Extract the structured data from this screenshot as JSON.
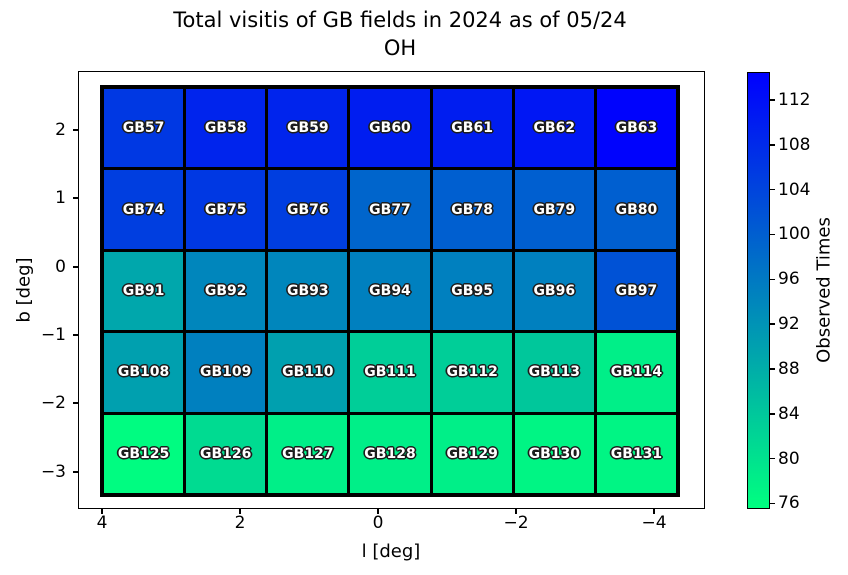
{
  "figure": {
    "title_line1": "Total visitis of GB fields in 2024 as of 05/24",
    "title_line2": "OH"
  },
  "chart_data": {
    "type": "heatmap",
    "title": "Total visitis of GB fields in 2024 as of 05/24\nOH",
    "xlabel": "l [deg]",
    "ylabel": "b [deg]",
    "x_tick_labels": [
      "4",
      "2",
      "0",
      "−2",
      "−4"
    ],
    "y_tick_labels": [
      "2",
      "1",
      "0",
      "−1",
      "−2",
      "−3"
    ],
    "x_axis_reversed": true,
    "xlim": [
      4.4,
      -4.6
    ],
    "ylim": [
      -3.55,
      2.85
    ],
    "grid": false,
    "colormap": "winter_r",
    "colorbar": {
      "label": "Observed Times",
      "ticks": [
        112,
        108,
        104,
        100,
        96,
        92,
        88,
        84,
        80,
        76
      ],
      "vmin": 75.5,
      "vmax": 114.5,
      "position": "right"
    },
    "rows": [
      {
        "b_center": 2.06,
        "cells": [
          {
            "field": "GB57",
            "value": 106
          },
          {
            "field": "GB58",
            "value": 109
          },
          {
            "field": "GB59",
            "value": 109
          },
          {
            "field": "GB60",
            "value": 110
          },
          {
            "field": "GB61",
            "value": 110
          },
          {
            "field": "GB62",
            "value": 111
          },
          {
            "field": "GB63",
            "value": 114
          }
        ]
      },
      {
        "b_center": 0.86,
        "cells": [
          {
            "field": "GB74",
            "value": 105
          },
          {
            "field": "GB75",
            "value": 106
          },
          {
            "field": "GB76",
            "value": 105
          },
          {
            "field": "GB77",
            "value": 99
          },
          {
            "field": "GB78",
            "value": 100
          },
          {
            "field": "GB79",
            "value": 100
          },
          {
            "field": "GB80",
            "value": 100
          }
        ]
      },
      {
        "b_center": -0.34,
        "cells": [
          {
            "field": "GB91",
            "value": 89
          },
          {
            "field": "GB92",
            "value": 94
          },
          {
            "field": "GB93",
            "value": 94
          },
          {
            "field": "GB94",
            "value": 95
          },
          {
            "field": "GB95",
            "value": 95
          },
          {
            "field": "GB96",
            "value": 95
          },
          {
            "field": "GB97",
            "value": 102
          }
        ]
      },
      {
        "b_center": -1.54,
        "cells": [
          {
            "field": "GB108",
            "value": 90
          },
          {
            "field": "GB109",
            "value": 95
          },
          {
            "field": "GB110",
            "value": 90
          },
          {
            "field": "GB111",
            "value": 83
          },
          {
            "field": "GB112",
            "value": 83
          },
          {
            "field": "GB113",
            "value": 84
          },
          {
            "field": "GB114",
            "value": 78
          }
        ]
      },
      {
        "b_center": -2.74,
        "cells": [
          {
            "field": "GB125",
            "value": 76
          },
          {
            "field": "GB126",
            "value": 81
          },
          {
            "field": "GB127",
            "value": 78
          },
          {
            "field": "GB128",
            "value": 78
          },
          {
            "field": "GB129",
            "value": 78
          },
          {
            "field": "GB130",
            "value": 77
          },
          {
            "field": "GB131",
            "value": 77
          }
        ]
      }
    ]
  }
}
